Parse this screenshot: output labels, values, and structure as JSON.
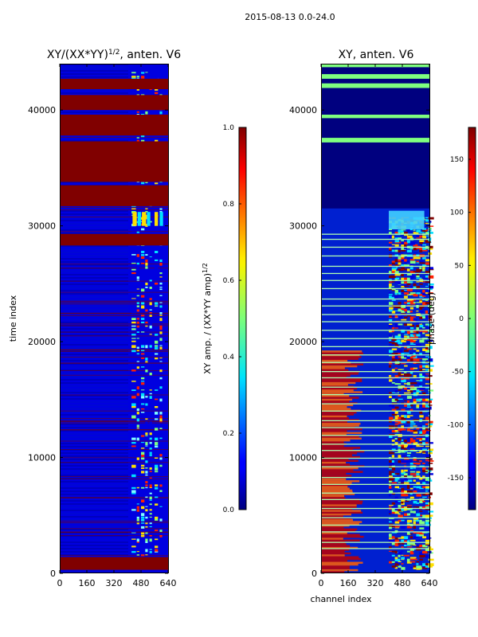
{
  "suptitle": "2015-08-13 0.0-24.0",
  "chart_data": [
    {
      "type": "heatmap",
      "title_main": "XY/(XX*YY)",
      "title_exp": "1/2",
      "title_rest": ", anten. V6",
      "ylabel": "time index",
      "xlabel": "",
      "x_ticks": [
        0,
        160,
        320,
        480,
        640
      ],
      "y_ticks": [
        0,
        10000,
        20000,
        30000,
        40000
      ],
      "xlim": [
        0,
        640
      ],
      "ylim": [
        0,
        44000
      ],
      "colorbar": {
        "label_main": "XY amp. / (XX*YY amp)",
        "label_exp": "1/2",
        "range": [
          0.0,
          1.0
        ],
        "ticks": [
          "0.0",
          "0.2",
          "0.4",
          "0.6",
          "0.8",
          "1.0"
        ]
      },
      "saturated_bands": [
        [
          300,
          1400
        ],
        [
          28300,
          29300
        ],
        [
          31700,
          33500
        ],
        [
          33800,
          37300
        ],
        [
          37800,
          39600
        ],
        [
          40000,
          41300
        ],
        [
          41800,
          42700
        ]
      ]
    },
    {
      "type": "heatmap",
      "title": "XY, anten. V6",
      "ylabel": "",
      "xlabel": "channel index",
      "x_ticks": [
        0,
        160,
        320,
        480,
        640
      ],
      "y_ticks": [
        0,
        10000,
        20000,
        30000,
        40000
      ],
      "xlim": [
        0,
        640
      ],
      "ylim": [
        0,
        44000
      ],
      "colorbar": {
        "label": "phase (deg)",
        "range": [
          -180,
          180
        ],
        "ticks": [
          "-150",
          "-100",
          "-50",
          "0",
          "50",
          "100",
          "150"
        ]
      }
    }
  ],
  "colors": {
    "dark_blue": "#00007f",
    "blue": "#0000e0",
    "dark_red": "#800000",
    "red": "#ff2000",
    "yellow": "#ffe000",
    "cyan": "#00e0ff",
    "green": "#7fff7f"
  }
}
